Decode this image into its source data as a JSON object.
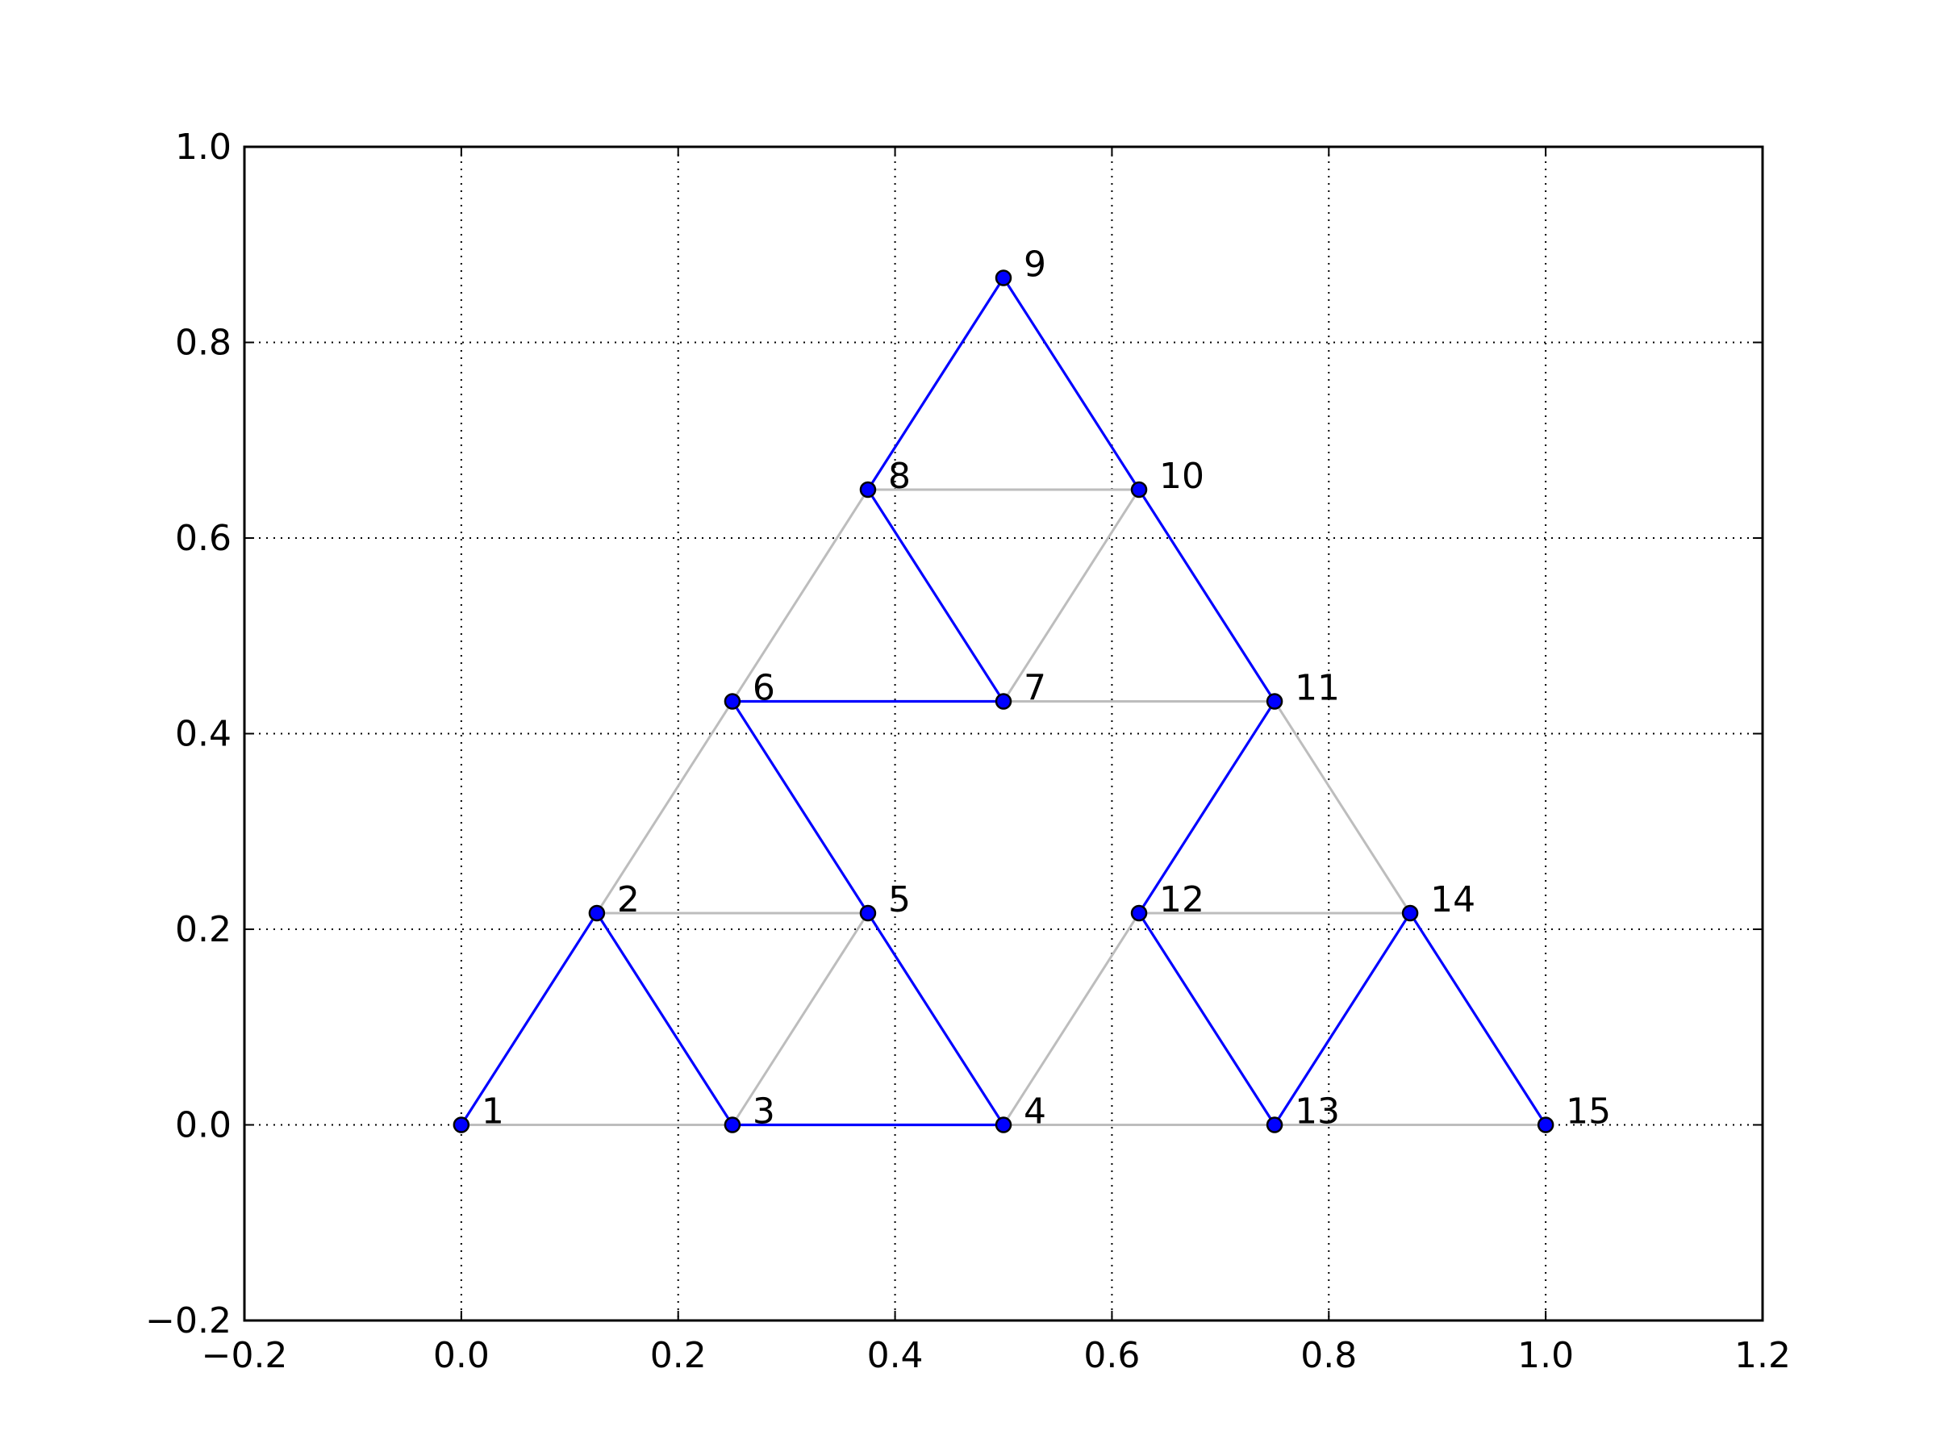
{
  "chart_data": {
    "type": "scatter",
    "title": "",
    "xlabel": "",
    "ylabel": "",
    "xlim": [
      -0.2,
      1.2
    ],
    "ylim": [
      -0.2,
      1.0
    ],
    "grid": true,
    "x_ticks": [
      -0.2,
      0.0,
      0.2,
      0.4,
      0.6,
      0.8,
      1.0,
      1.2
    ],
    "y_ticks": [
      -0.2,
      0.0,
      0.2,
      0.4,
      0.6,
      0.8,
      1.0
    ],
    "x_tick_labels": [
      "−0.2",
      "0.0",
      "0.2",
      "0.4",
      "0.6",
      "0.8",
      "1.0",
      "1.2"
    ],
    "y_tick_labels": [
      "−0.2",
      "0.0",
      "0.2",
      "0.4",
      "0.6",
      "0.8",
      "1.0"
    ],
    "nodes": [
      {
        "label": "1",
        "x": 0.0,
        "y": 0.0
      },
      {
        "label": "2",
        "x": 0.125,
        "y": 0.2165
      },
      {
        "label": "3",
        "x": 0.25,
        "y": 0.0
      },
      {
        "label": "4",
        "x": 0.5,
        "y": 0.0
      },
      {
        "label": "5",
        "x": 0.375,
        "y": 0.2165
      },
      {
        "label": "6",
        "x": 0.25,
        "y": 0.433
      },
      {
        "label": "7",
        "x": 0.5,
        "y": 0.433
      },
      {
        "label": "8",
        "x": 0.375,
        "y": 0.6495
      },
      {
        "label": "9",
        "x": 0.5,
        "y": 0.866
      },
      {
        "label": "10",
        "x": 0.625,
        "y": 0.6495
      },
      {
        "label": "11",
        "x": 0.75,
        "y": 0.433
      },
      {
        "label": "12",
        "x": 0.625,
        "y": 0.2165
      },
      {
        "label": "13",
        "x": 0.75,
        "y": 0.0
      },
      {
        "label": "14",
        "x": 0.875,
        "y": 0.2165
      },
      {
        "label": "15",
        "x": 1.0,
        "y": 0.0
      }
    ],
    "gray_edges": [
      [
        "1",
        "3"
      ],
      [
        "3",
        "4"
      ],
      [
        "4",
        "13"
      ],
      [
        "13",
        "15"
      ],
      [
        "2",
        "5"
      ],
      [
        "12",
        "14"
      ],
      [
        "6",
        "7"
      ],
      [
        "7",
        "11"
      ],
      [
        "8",
        "10"
      ],
      [
        "2",
        "6"
      ],
      [
        "6",
        "8"
      ],
      [
        "11",
        "14"
      ],
      [
        "3",
        "5"
      ],
      [
        "4",
        "12"
      ],
      [
        "7",
        "10"
      ]
    ],
    "blue_path": [
      "1",
      "2",
      "3",
      "4",
      "5",
      "6",
      "7",
      "8",
      "9",
      "10",
      "11",
      "12",
      "13",
      "14",
      "15"
    ],
    "colors": {
      "path": "#0000ff",
      "edges": "#bdbdbd",
      "marker_fill": "#0000ff",
      "marker_edge": "#000000",
      "grid": "#000000",
      "axes": "#000000"
    }
  }
}
